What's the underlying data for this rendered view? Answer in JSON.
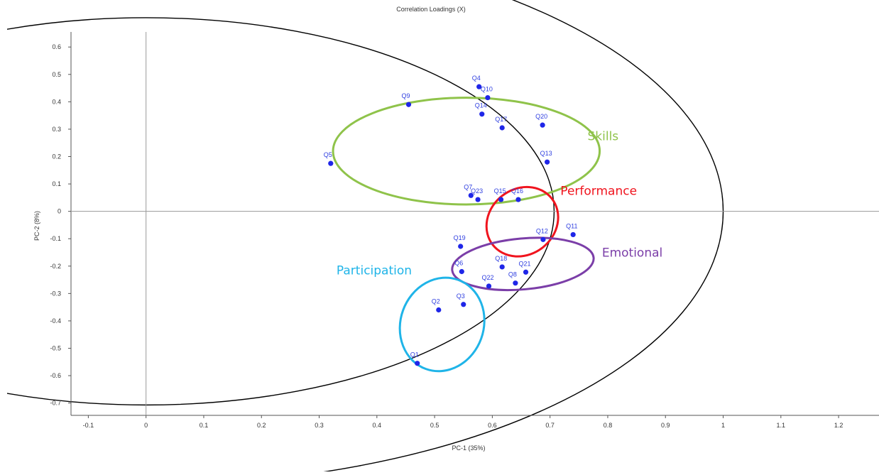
{
  "chart_data": {
    "type": "scatter",
    "title": "Correlation Loadings (X)",
    "xlabel": "PC-1 (35%)",
    "ylabel": "PC-2 (8%)",
    "xlim": [
      -0.13,
      1.27
    ],
    "ylim": [
      -0.745,
      0.655
    ],
    "x_ticks": [
      -0.1,
      0,
      0.1,
      0.2,
      0.3,
      0.4,
      0.5,
      0.6,
      0.7,
      0.8,
      0.9,
      1,
      1.1,
      1.2
    ],
    "x_tick_labels": [
      "-0.1",
      "0",
      "0.1",
      "0.2",
      "0.3",
      "0.4",
      "0.5",
      "0.6",
      "0.7",
      "0.8",
      "0.9",
      "1",
      "1.1",
      "1.2"
    ],
    "y_ticks": [
      0.6,
      0.5,
      0.4,
      0.3,
      0.2,
      0.1,
      0,
      -0.1,
      -0.2,
      -0.3,
      -0.4,
      -0.5,
      -0.6,
      -0.7
    ],
    "y_tick_labels": [
      "0.6",
      "0.5",
      "0.4",
      "0.3",
      "0.2",
      "0.1",
      "0",
      "-0.1",
      "-0.2",
      "-0.3",
      "-0.4",
      "-0.5",
      "-0.6",
      "-0.7"
    ],
    "point_color": "#1f26e8",
    "label_color": "#2f3fe0",
    "points": [
      {
        "label": "Q1",
        "x": 0.47,
        "y": -0.555
      },
      {
        "label": "Q2",
        "x": 0.507,
        "y": -0.36
      },
      {
        "label": "Q3",
        "x": 0.55,
        "y": -0.34
      },
      {
        "label": "Q4",
        "x": 0.577,
        "y": 0.455
      },
      {
        "label": "Q5",
        "x": 0.32,
        "y": 0.175
      },
      {
        "label": "Q6",
        "x": 0.547,
        "y": -0.22
      },
      {
        "label": "Q7",
        "x": 0.563,
        "y": 0.058
      },
      {
        "label": "Q8",
        "x": 0.64,
        "y": -0.262
      },
      {
        "label": "Q9",
        "x": 0.455,
        "y": 0.39
      },
      {
        "label": "Q10",
        "x": 0.592,
        "y": 0.415
      },
      {
        "label": "Q11",
        "x": 0.74,
        "y": -0.085
      },
      {
        "label": "Q12",
        "x": 0.688,
        "y": -0.103
      },
      {
        "label": "Q13",
        "x": 0.695,
        "y": 0.18
      },
      {
        "label": "Q14",
        "x": 0.582,
        "y": 0.355
      },
      {
        "label": "Q15",
        "x": 0.615,
        "y": 0.043
      },
      {
        "label": "Q16",
        "x": 0.645,
        "y": 0.043
      },
      {
        "label": "Q17",
        "x": 0.617,
        "y": 0.305
      },
      {
        "label": "Q18",
        "x": 0.617,
        "y": -0.203
      },
      {
        "label": "Q19",
        "x": 0.545,
        "y": -0.128
      },
      {
        "label": "Q20",
        "x": 0.687,
        "y": 0.315
      },
      {
        "label": "Q21",
        "x": 0.658,
        "y": -0.222
      },
      {
        "label": "Q22",
        "x": 0.594,
        "y": -0.273
      },
      {
        "label": "Q23",
        "x": 0.575,
        "y": 0.043
      }
    ],
    "circles": [
      {
        "name": "inner",
        "radius": 0.7071,
        "color": "#000000"
      },
      {
        "name": "outer",
        "radius": 1.0,
        "color": "#000000"
      }
    ],
    "groups": [
      {
        "label": "Skills",
        "color": "#8fc34a",
        "cx": 0.555,
        "cy": 0.22,
        "rx": 0.231,
        "ry": 0.195,
        "angle": -0.05,
        "label_x": 0.765,
        "label_y": 0.26
      },
      {
        "label": "Performance",
        "color": "#f0141e",
        "cx": 0.652,
        "cy": -0.038,
        "rx": 0.065,
        "ry": 0.12,
        "angle": -38,
        "label_x": 0.718,
        "label_y": 0.06
      },
      {
        "label": "Emotional",
        "color": "#7b3ea8",
        "cx": 0.653,
        "cy": -0.192,
        "rx": 0.123,
        "ry": 0.093,
        "angle": -5,
        "label_x": 0.79,
        "label_y": -0.165
      },
      {
        "label": "Participation",
        "color": "#1fb4e8",
        "cx": 0.513,
        "cy": -0.413,
        "rx": 0.072,
        "ry": 0.173,
        "angle": 20,
        "label_x": 0.33,
        "label_y": -0.23
      }
    ]
  }
}
